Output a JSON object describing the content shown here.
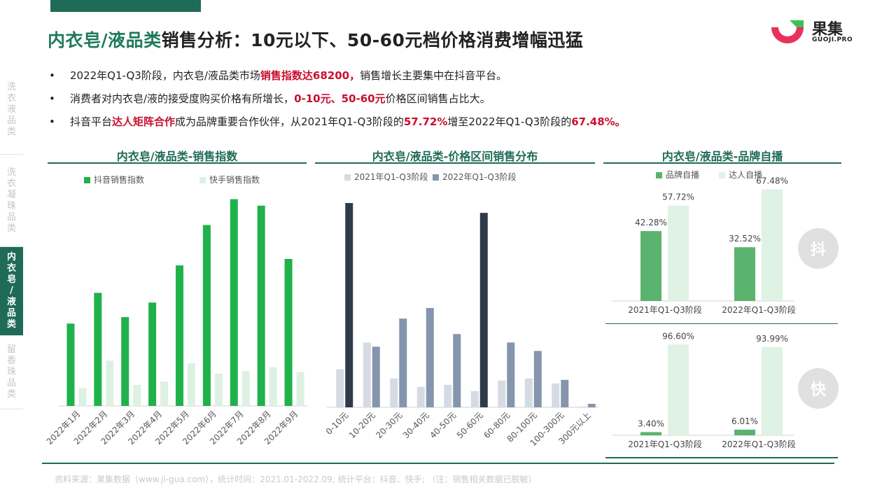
{
  "title": {
    "highlight": "内衣皂/液品类",
    "rest": "销售分析：10元以下、50-60元档价格消费增幅迅猛"
  },
  "logo": {
    "name": "果集",
    "sub": "GUOJI.PRO"
  },
  "sidenav": [
    {
      "label": "洗衣液品类",
      "active": false
    },
    {
      "label": "洗衣凝珠品类",
      "active": false
    },
    {
      "label": "内衣皂/液品类",
      "active": true
    },
    {
      "label": "留香珠品类",
      "active": false
    }
  ],
  "bullets": [
    {
      "bullet": "•",
      "parts": [
        {
          "text": "2022年Q1-Q3阶段，内衣皂/液品类市场",
          "red": false
        },
        {
          "text": "销售指数达68200，",
          "red": true
        },
        {
          "text": "销售增长主要集中在抖音平台。",
          "red": false
        }
      ]
    },
    {
      "bullet": "•",
      "parts": [
        {
          "text": "消费者对内衣皂/液的接受度购买价格有所增长，",
          "red": false
        },
        {
          "text": "0-10元、50-60元",
          "red": true
        },
        {
          "text": "价格区间销售占比大。",
          "red": false
        }
      ]
    },
    {
      "bullet": "•",
      "parts": [
        {
          "text": "抖音平台",
          "red": false
        },
        {
          "text": "达人矩阵合作",
          "red": true
        },
        {
          "text": "成为品牌重要合作伙伴，从2021年Q1-Q3阶段的",
          "red": false
        },
        {
          "text": "57.72%",
          "red": true
        },
        {
          "text": "增至2022年Q1-Q3阶段的",
          "red": false
        },
        {
          "text": "67.48%。",
          "red": true
        }
      ]
    }
  ],
  "badges": {
    "douyin": "抖",
    "kuaishou": "快"
  },
  "footer": "资料来源：果集数据（www.ji-gua.com），统计时间：2021.01-2022.09;     统计平台：抖音、快手; （注：销售相关数据已脱敏）",
  "colors": {
    "brand": "#1f6b57",
    "douyin_green": "#1fb24a",
    "kuaishou_light": "#dcf1e2",
    "y2021": "#d5dbe3",
    "y2022_dark": "#2e3a4a",
    "y2022": "#8595ad",
    "self": "#5ab36e",
    "kol": "#dff2e4",
    "highlight_red": "#c8102e"
  },
  "chart_data": [
    {
      "type": "bar",
      "title": "内衣皂/液品类-销售指数",
      "categories": [
        "2022年1月",
        "2022年2月",
        "2022年3月",
        "2022年4月",
        "2022年5月",
        "2022年6月",
        "2022年7月",
        "2022年8月",
        "2022年9月"
      ],
      "series": [
        {
          "name": "抖音销售指数",
          "values": [
            5100,
            7000,
            5500,
            6400,
            8700,
            11200,
            12800,
            12400,
            9100
          ]
        },
        {
          "name": "快手销售指数",
          "values": [
            1100,
            2800,
            1300,
            1500,
            2650,
            2000,
            2150,
            2400,
            2100
          ]
        }
      ],
      "ylim": [
        0,
        13000
      ],
      "legend": "top-left",
      "grid": false
    },
    {
      "type": "bar",
      "title": "内衣皂/液品类-价格区间销售分布",
      "categories": [
        "0-10元",
        "10-20元",
        "20-30元",
        "30-40元",
        "40-50元",
        "50-60元",
        "60-80元",
        "80-100元",
        "100-300元",
        "300元以上"
      ],
      "series": [
        {
          "name": "2021年Q1-Q3阶段",
          "values": [
            5.4,
            9.2,
            4.1,
            2.9,
            3.2,
            2.3,
            3.8,
            4.1,
            3.4,
            0.1
          ]
        },
        {
          "name": "2022年Q1-Q3阶段",
          "values": [
            29.0,
            8.6,
            12.6,
            14.1,
            10.4,
            27.6,
            9.2,
            8.0,
            3.9,
            0.5
          ]
        }
      ],
      "ylim": [
        0,
        30
      ],
      "legend": "top-left",
      "grid": false
    },
    {
      "type": "bar",
      "title": "内衣皂/液品类-品牌自播",
      "subtitle": "抖",
      "categories": [
        "2021年Q1-Q3阶段",
        "2022年Q1-Q3阶段"
      ],
      "series": [
        {
          "name": "品牌自播",
          "values": [
            42.28,
            32.52
          ]
        },
        {
          "name": "达人自播",
          "values": [
            57.72,
            67.48
          ]
        }
      ],
      "data_labels": [
        "42.28%",
        "32.52%",
        "57.72%",
        "67.48%"
      ],
      "ylim": [
        0,
        72
      ],
      "legend": "top-left"
    },
    {
      "type": "bar",
      "subtitle": "快",
      "categories": [
        "2021年Q1-Q3阶段",
        "2022年Q1-Q3阶段"
      ],
      "series": [
        {
          "name": "品牌自播",
          "values": [
            3.4,
            6.01
          ]
        },
        {
          "name": "达人自播",
          "values": [
            96.6,
            93.99
          ]
        }
      ],
      "data_labels": [
        "3.40%",
        "6.01%",
        "96.60%",
        "93.99%"
      ],
      "ylim": [
        0,
        102
      ]
    }
  ]
}
